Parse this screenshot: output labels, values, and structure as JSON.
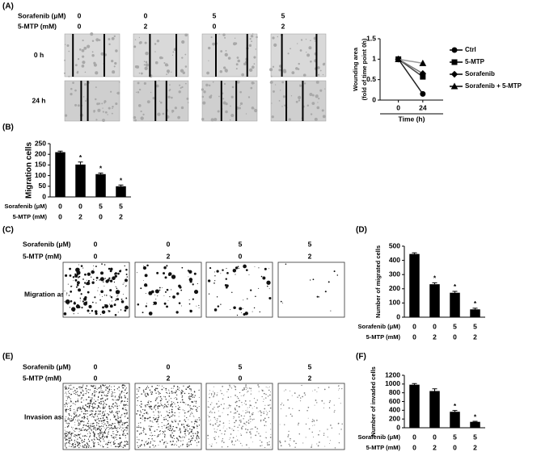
{
  "panels": {
    "a": "(A)",
    "b": "(B)",
    "c": "(C)",
    "d": "(D)",
    "e": "(E)",
    "f": "(F)"
  },
  "wound_assay": {
    "conditions": [
      {
        "label": "Sorafenib (μM)",
        "values": [
          0,
          0,
          5,
          5
        ]
      },
      {
        "label": "5-MTP (mM)",
        "values": [
          0,
          2,
          0,
          2
        ]
      }
    ],
    "rows": [
      "0 h",
      "24 h"
    ]
  },
  "migration_assay": {
    "conditions": [
      {
        "label": "Sorafenib (μM)",
        "values": [
          0,
          0,
          5,
          5
        ]
      },
      {
        "label": "5-MTP (mM)",
        "values": [
          0,
          2,
          0,
          2
        ]
      }
    ],
    "label": "Migration assay"
  },
  "invasion_assay": {
    "conditions": [
      {
        "label": "Sorafenib (μM)",
        "values": [
          0,
          0,
          5,
          5
        ]
      },
      {
        "label": "5-MTP (mM)",
        "values": [
          0,
          2,
          0,
          2
        ]
      }
    ],
    "label": "Invasion assay"
  },
  "chart_data": [
    {
      "type": "line",
      "ylabel": [
        "Wounding area",
        "(fold of time point 0h)"
      ],
      "xlabel": "Time (h)",
      "x": [
        0,
        24
      ],
      "xlim": [
        -18,
        44
      ],
      "xticks": [
        0,
        24
      ],
      "ylim": [
        0,
        1.5
      ],
      "yticks": [
        0,
        0.5,
        1,
        1.5
      ],
      "series": [
        {
          "name": "Ctrl",
          "color": "#222222",
          "marker": "circle",
          "values": [
            1,
            0.15
          ]
        },
        {
          "name": "5-MTP",
          "color": "#444444",
          "marker": "square",
          "values": [
            1,
            0.57
          ]
        },
        {
          "name": "Sorafenib",
          "color": "#777777",
          "marker": "diamond",
          "values": [
            1,
            0.65
          ]
        },
        {
          "name": "Sorafenib + 5-MTP",
          "color": "#999999",
          "marker": "triangle",
          "values": [
            1,
            0.9
          ]
        }
      ]
    },
    {
      "type": "bar",
      "ylabel": "Migration cells",
      "color": "#000000",
      "values": [
        210,
        152,
        107,
        50
      ],
      "errors": [
        5,
        12,
        5,
        6
      ],
      "value_annotations": [
        null,
        "*",
        "*",
        "*"
      ],
      "ylim": [
        0,
        250
      ],
      "yticks": [
        0,
        50,
        100,
        150,
        200,
        250
      ],
      "condition_rows": [
        {
          "label": "Sorafenib (μM)",
          "values": [
            0,
            0,
            5,
            5
          ]
        },
        {
          "label": "5-MTP (mM)",
          "values": [
            0,
            2,
            0,
            2
          ]
        }
      ]
    },
    {
      "type": "bar",
      "ylabel": "Number of migrated cells",
      "color": "#000000",
      "values": [
        445,
        232,
        172,
        55
      ],
      "errors": [
        8,
        10,
        10,
        8
      ],
      "value_annotations": [
        null,
        "*",
        "*",
        "*"
      ],
      "ylim": [
        0,
        500
      ],
      "yticks": [
        0,
        100,
        200,
        300,
        400,
        500
      ],
      "condition_rows": [
        {
          "label": "Sorafenib (μM)",
          "values": [
            0,
            0,
            5,
            5
          ]
        },
        {
          "label": "5-MTP (mM)",
          "values": [
            0,
            2,
            0,
            2
          ]
        }
      ]
    },
    {
      "type": "bar",
      "ylabel": "Number of invaded cells",
      "color": "#000000",
      "values": [
        985,
        840,
        365,
        135
      ],
      "errors": [
        25,
        50,
        30,
        12
      ],
      "value_annotations": [
        null,
        null,
        "*",
        "*"
      ],
      "ylim": [
        0,
        1200
      ],
      "yticks": [
        0,
        200,
        400,
        600,
        800,
        1000,
        1200
      ],
      "condition_rows": [
        {
          "label": "Sorafenib (μM)",
          "values": [
            0,
            0,
            5,
            5
          ]
        },
        {
          "label": "5-MTP (mM)",
          "values": [
            0,
            2,
            0,
            2
          ]
        }
      ]
    }
  ]
}
